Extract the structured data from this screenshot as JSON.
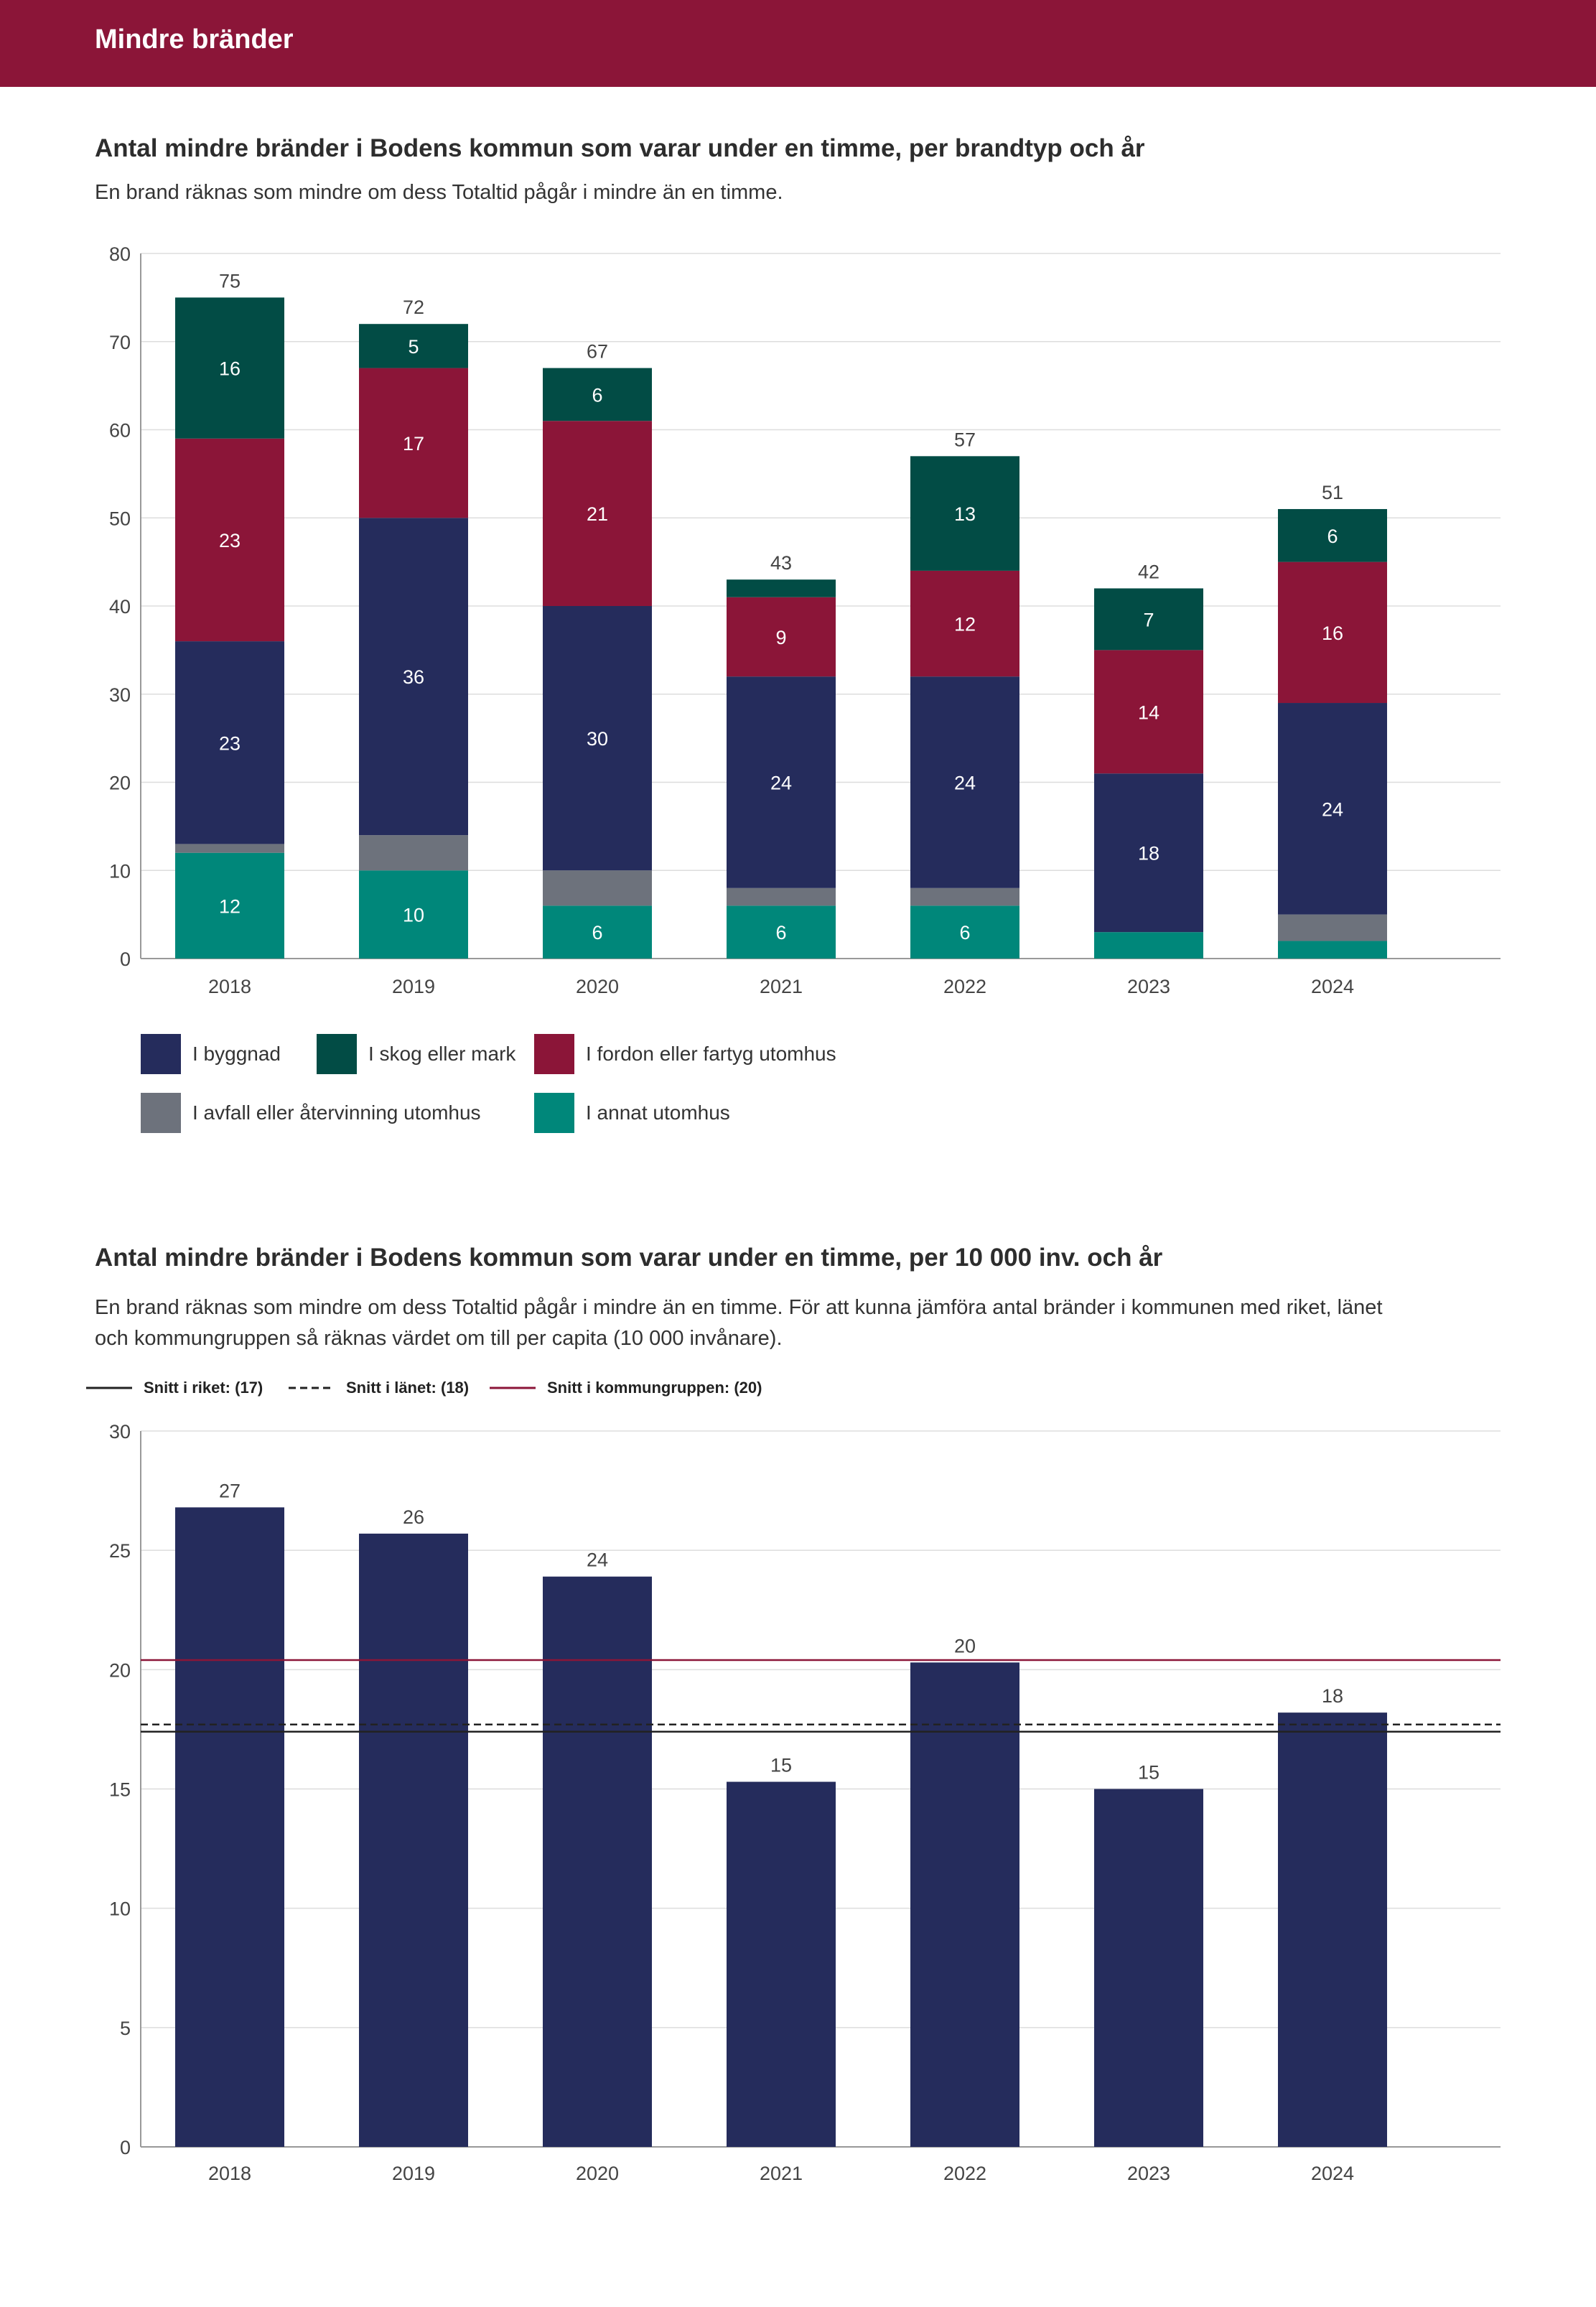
{
  "header": {
    "title": "Mindre bränder"
  },
  "chart1": {
    "title": "Antal mindre bränder i Bodens kommun som varar under en timme, per brandtyp och år",
    "description": "En brand räknas som mindre om dess Totaltid pågår i mindre än en timme."
  },
  "chart2": {
    "title": "Antal mindre bränder i Bodens kommun som varar under en timme, per 10 000 inv. och år",
    "description_line1": "En brand räknas som mindre om dess Totaltid pågår i mindre än en timme. För att kunna jämföra antal bränder i kommunen med riket, länet",
    "description_line2": "och kommungruppen så räknas värdet om till per capita (10 000 invånare)."
  },
  "legend": [
    {
      "label": "I byggnad",
      "color": "#252c5c"
    },
    {
      "label": "I skog eller mark",
      "color": "#024c45"
    },
    {
      "label": "I fordon eller fartyg utomhus",
      "color": "#8b1538"
    },
    {
      "label": "I avfall eller återvinning utomhus",
      "color": "#6d727c"
    },
    {
      "label": "I annat utomhus",
      "color": "#00877a"
    }
  ],
  "reference_legend": [
    {
      "label": "Snitt i riket: (17)",
      "style": "solid",
      "color": "#222222"
    },
    {
      "label": "Snitt i länet: (18)",
      "style": "dashed",
      "color": "#222222"
    },
    {
      "label": "Snitt i kommungruppen: (20)",
      "style": "solid",
      "color": "#8b1538"
    }
  ],
  "chart_data": [
    {
      "type": "bar",
      "stacked": true,
      "title": "Antal mindre bränder i Bodens kommun som varar under en timme, per brandtyp och år",
      "categories": [
        "2018",
        "2019",
        "2020",
        "2021",
        "2022",
        "2023",
        "2024"
      ],
      "ylim": [
        0,
        80
      ],
      "yticks": [
        "0",
        "10",
        "20",
        "30",
        "40",
        "50",
        "60",
        "70",
        "80"
      ],
      "grid": true,
      "legend_position": "bottom",
      "series": [
        {
          "name": "I annat utomhus",
          "color": "#00877a",
          "values": [
            12,
            10,
            6,
            6,
            6,
            3,
            2
          ],
          "labels": [
            "12",
            "10",
            "6",
            "6",
            "6",
            "",
            ""
          ]
        },
        {
          "name": "I avfall eller återvinning utomhus",
          "color": "#6d727c",
          "values": [
            1,
            4,
            4,
            2,
            2,
            0,
            3
          ],
          "labels": [
            "",
            "",
            "",
            "",
            "",
            "",
            ""
          ]
        },
        {
          "name": "I byggnad",
          "color": "#252c5c",
          "values": [
            23,
            36,
            30,
            24,
            24,
            18,
            24
          ],
          "labels": [
            "23",
            "36",
            "30",
            "24",
            "24",
            "18",
            "24"
          ]
        },
        {
          "name": "I fordon eller fartyg utomhus",
          "color": "#8b1538",
          "values": [
            23,
            17,
            21,
            9,
            12,
            14,
            16
          ],
          "labels": [
            "23",
            "17",
            "21",
            "9",
            "12",
            "14",
            "16"
          ]
        },
        {
          "name": "I skog eller mark",
          "color": "#024c45",
          "values": [
            16,
            5,
            6,
            2,
            13,
            7,
            6
          ],
          "labels": [
            "16",
            "5",
            "6",
            "",
            "13",
            "7",
            "6"
          ]
        }
      ],
      "totals": [
        "75",
        "72",
        "67",
        "43",
        "57",
        "42",
        "51"
      ]
    },
    {
      "type": "bar",
      "title": "Antal mindre bränder i Bodens kommun som varar under en timme, per 10 000 inv. och år",
      "categories": [
        "2018",
        "2019",
        "2020",
        "2021",
        "2022",
        "2023",
        "2024"
      ],
      "values": [
        26.8,
        25.7,
        23.9,
        15.3,
        20.3,
        15.0,
        18.2
      ],
      "value_labels": [
        "27",
        "26",
        "24",
        "15",
        "20",
        "15",
        "18"
      ],
      "color": "#252c5c",
      "ylim": [
        0,
        30
      ],
      "yticks": [
        "0",
        "5",
        "10",
        "15",
        "20",
        "25",
        "30"
      ],
      "grid": true,
      "reference_lines": [
        {
          "name": "Snitt i riket",
          "value": 17.4,
          "style": "solid",
          "color": "#222222"
        },
        {
          "name": "Snitt i länet",
          "value": 17.7,
          "style": "dashed",
          "color": "#222222"
        },
        {
          "name": "Snitt i kommungruppen",
          "value": 20.4,
          "style": "solid",
          "color": "#8b1538"
        }
      ]
    }
  ]
}
